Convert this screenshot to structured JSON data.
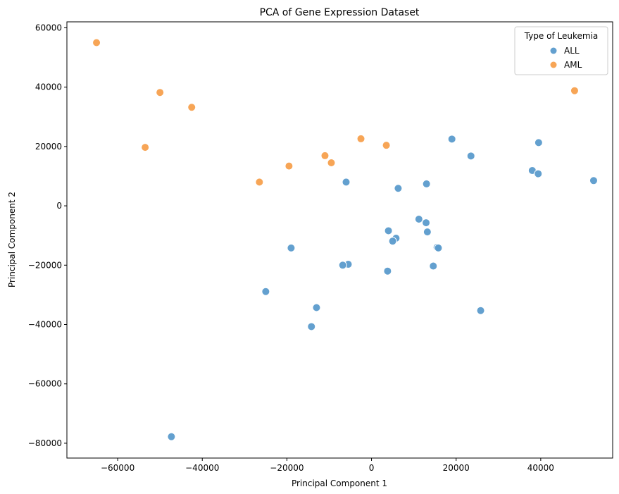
{
  "chart_data": {
    "type": "scatter",
    "title": "PCA of Gene Expression Dataset",
    "xlabel": "Principal Component 1",
    "ylabel": "Principal Component 2",
    "xlim": [
      -72000,
      57000
    ],
    "ylim": [
      -85000,
      62000
    ],
    "xticks": [
      -60000,
      -40000,
      -20000,
      0,
      20000,
      40000
    ],
    "xtick_labels": [
      "−60000",
      "−40000",
      "−20000",
      "0",
      "20000",
      "40000"
    ],
    "yticks": [
      -80000,
      -60000,
      -40000,
      -20000,
      0,
      20000,
      40000,
      60000
    ],
    "ytick_labels": [
      "−80000",
      "−60000",
      "−40000",
      "−20000",
      "0",
      "20000",
      "40000",
      "60000"
    ],
    "grid": false,
    "legend": {
      "title": "Type of Leukemia",
      "placement": "top-right"
    },
    "series": [
      {
        "name": "ALL",
        "color": "#5b9bcc",
        "points": [
          {
            "x": 19000,
            "y": 22500
          },
          {
            "x": 23500,
            "y": 16800
          },
          {
            "x": 39500,
            "y": 21300
          },
          {
            "x": 38000,
            "y": 11900
          },
          {
            "x": 39400,
            "y": 10800
          },
          {
            "x": 52500,
            "y": 8500
          },
          {
            "x": -6000,
            "y": 8000
          },
          {
            "x": 6300,
            "y": 5900
          },
          {
            "x": 13000,
            "y": 7400
          },
          {
            "x": 11200,
            "y": -4500
          },
          {
            "x": 12900,
            "y": -5700
          },
          {
            "x": 4000,
            "y": -8400
          },
          {
            "x": 13200,
            "y": -8800
          },
          {
            "x": 5800,
            "y": -10900
          },
          {
            "x": 5000,
            "y": -11900
          },
          {
            "x": 15500,
            "y": -14000
          },
          {
            "x": 15800,
            "y": -14200
          },
          {
            "x": -19000,
            "y": -14200
          },
          {
            "x": -5500,
            "y": -19700
          },
          {
            "x": -6800,
            "y": -20000
          },
          {
            "x": 14600,
            "y": -20300
          },
          {
            "x": 3800,
            "y": -22000
          },
          {
            "x": -25000,
            "y": -28900
          },
          {
            "x": -13000,
            "y": -34300
          },
          {
            "x": 25800,
            "y": -35300
          },
          {
            "x": -14200,
            "y": -40700
          },
          {
            "x": -47300,
            "y": -77800
          }
        ]
      },
      {
        "name": "AML",
        "color": "#f7a04d",
        "points": [
          {
            "x": -65000,
            "y": 55000
          },
          {
            "x": -50000,
            "y": 38200
          },
          {
            "x": -42500,
            "y": 33200
          },
          {
            "x": -53500,
            "y": 19700
          },
          {
            "x": -26500,
            "y": 8000
          },
          {
            "x": -19500,
            "y": 13400
          },
          {
            "x": -11000,
            "y": 16900
          },
          {
            "x": -9500,
            "y": 14500
          },
          {
            "x": -2500,
            "y": 22600
          },
          {
            "x": 3500,
            "y": 20400
          },
          {
            "x": 48000,
            "y": 38800
          }
        ]
      }
    ]
  }
}
